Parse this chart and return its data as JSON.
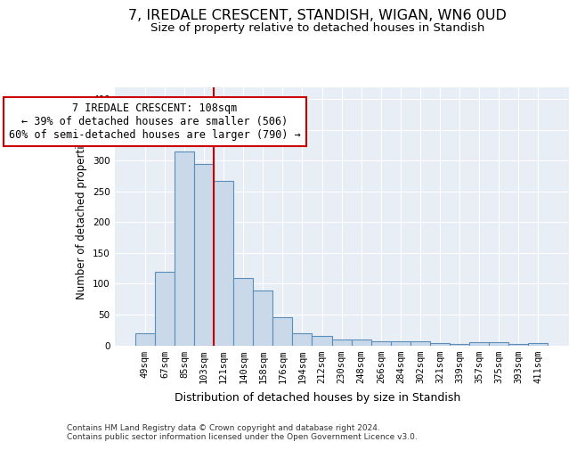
{
  "title": "7, IREDALE CRESCENT, STANDISH, WIGAN, WN6 0UD",
  "subtitle": "Size of property relative to detached houses in Standish",
  "xlabel": "Distribution of detached houses by size in Standish",
  "ylabel": "Number of detached properties",
  "categories": [
    "49sqm",
    "67sqm",
    "85sqm",
    "103sqm",
    "121sqm",
    "140sqm",
    "158sqm",
    "176sqm",
    "194sqm",
    "212sqm",
    "230sqm",
    "248sqm",
    "266sqm",
    "284sqm",
    "302sqm",
    "321sqm",
    "339sqm",
    "357sqm",
    "375sqm",
    "393sqm",
    "411sqm"
  ],
  "values": [
    19,
    120,
    315,
    295,
    267,
    110,
    89,
    45,
    20,
    15,
    10,
    9,
    7,
    7,
    6,
    3,
    2,
    5,
    5,
    2,
    3
  ],
  "bar_color": "#c9d9ea",
  "bar_edge_color": "#5b8db8",
  "vline_x": 3.5,
  "vline_color": "#cc0000",
  "annotation_text": "7 IREDALE CRESCENT: 108sqm\n← 39% of detached houses are smaller (506)\n60% of semi-detached houses are larger (790) →",
  "annotation_box_color": "#ffffff",
  "annotation_box_edge_color": "#cc0000",
  "ylim": [
    0,
    420
  ],
  "yticks": [
    0,
    50,
    100,
    150,
    200,
    250,
    300,
    350,
    400
  ],
  "background_color": "#e8eef6",
  "footer_text": "Contains HM Land Registry data © Crown copyright and database right 2024.\nContains public sector information licensed under the Open Government Licence v3.0.",
  "title_fontsize": 11.5,
  "subtitle_fontsize": 9.5,
  "xlabel_fontsize": 9,
  "ylabel_fontsize": 8.5,
  "tick_fontsize": 7.5,
  "annotation_fontsize": 8.5,
  "footer_fontsize": 6.5
}
